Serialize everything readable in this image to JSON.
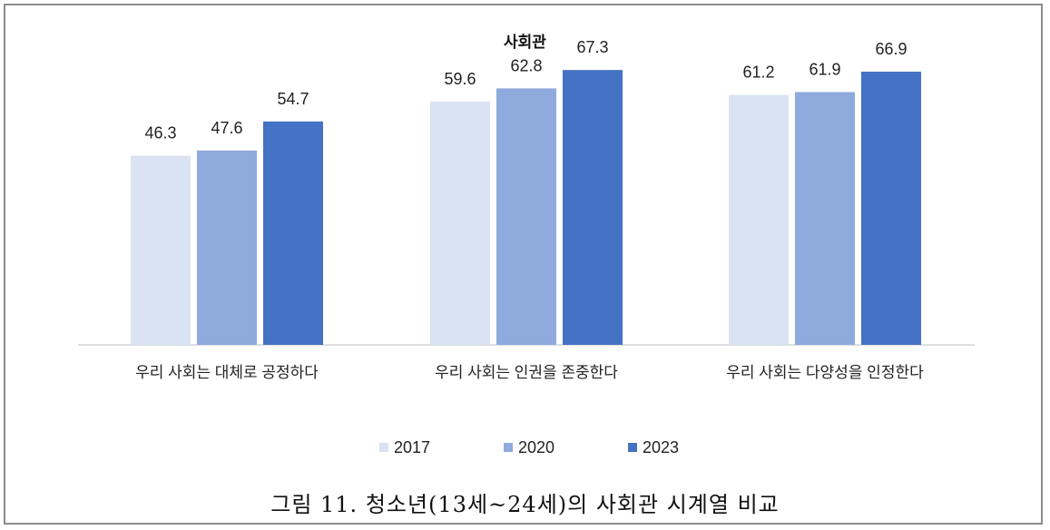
{
  "chart_data": {
    "type": "bar",
    "title": "사회관",
    "categories": [
      "우리 사회는 대체로 공정하다",
      "우리 사회는 인권을 존중한다",
      "우리 사회는 다양성을 인정한다"
    ],
    "series": [
      {
        "name": "2017",
        "values": [
          46.3,
          59.6,
          61.2
        ],
        "color": "#dae3f3"
      },
      {
        "name": "2020",
        "values": [
          47.6,
          62.8,
          61.9
        ],
        "color": "#8faadc"
      },
      {
        "name": "2023",
        "values": [
          54.7,
          67.3,
          66.9
        ],
        "color": "#4472c4"
      }
    ],
    "ylim": [
      0,
      80
    ],
    "grid": false,
    "legend_position": "bottom"
  },
  "caption": "그림 11. 청소년(13세~24세)의 사회관 시계열 비교"
}
